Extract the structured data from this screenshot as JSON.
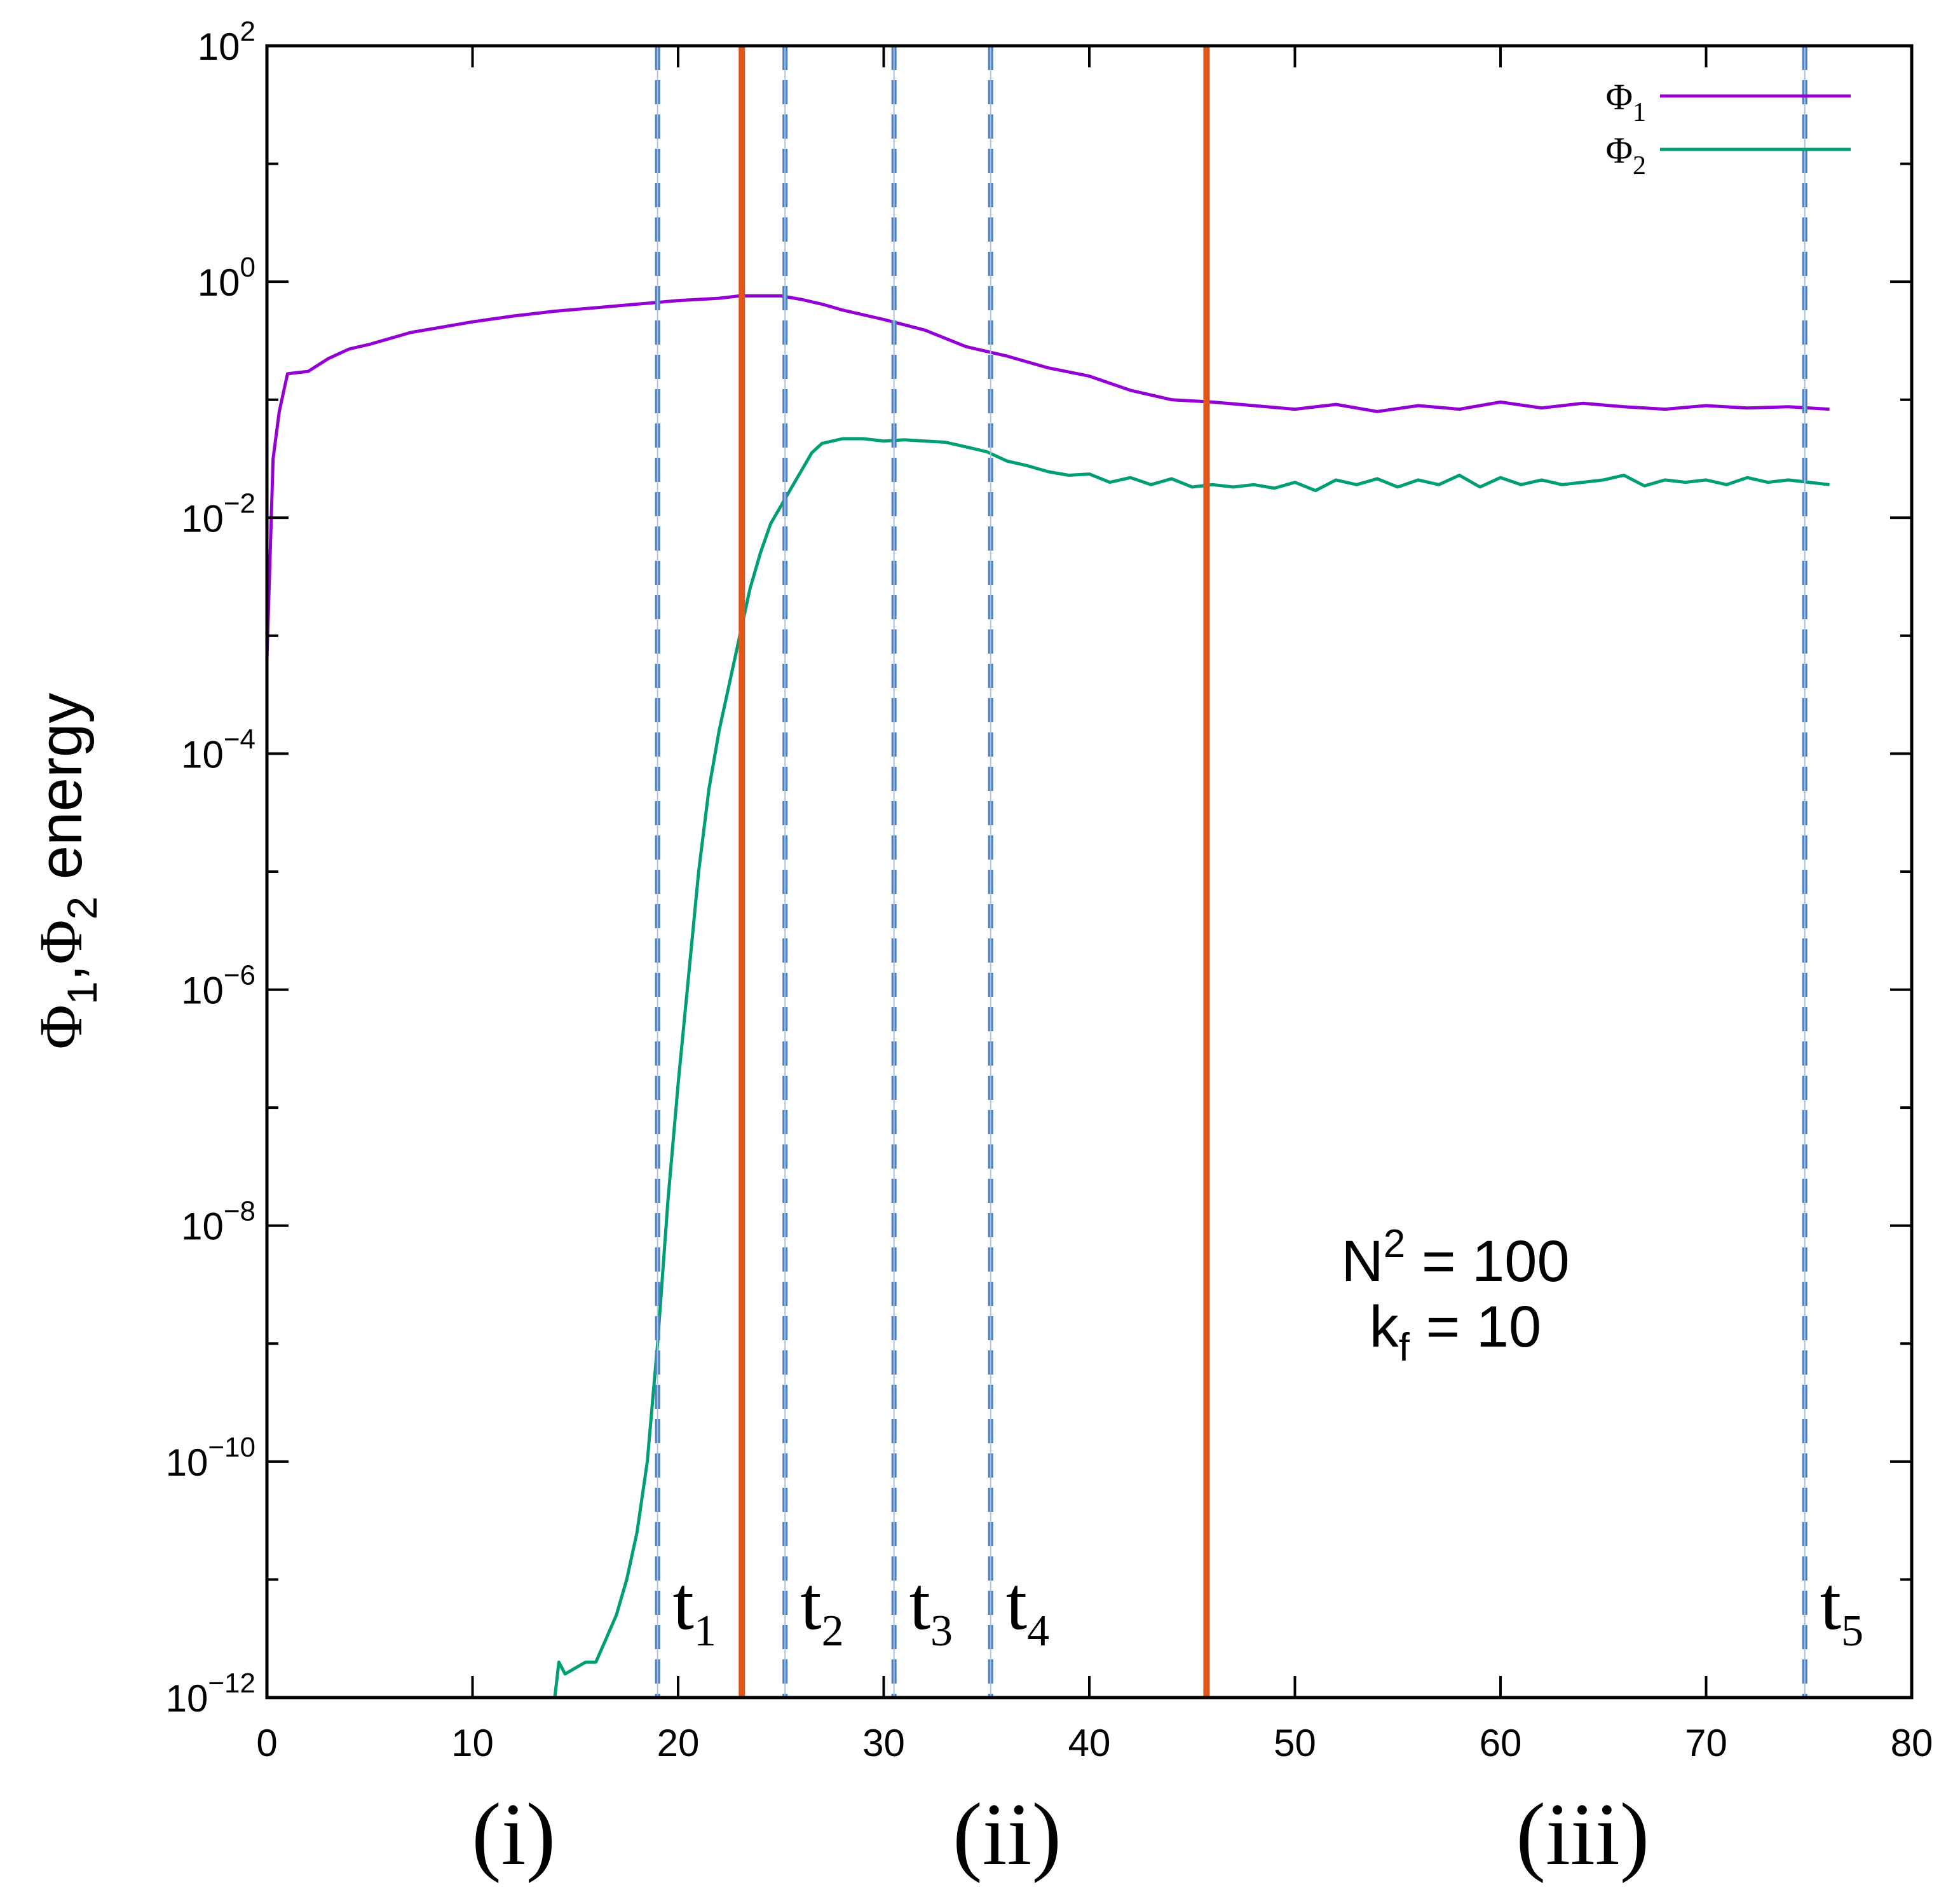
{
  "chart_data": {
    "type": "line",
    "title": "",
    "xlabel": "",
    "ylabel": {
      "base": "Φ",
      "sub1": "1",
      "comma": ",",
      "base2": "Φ",
      "sub2": "2",
      "rest": " energy"
    },
    "xlim": [
      0,
      80
    ],
    "ylim_log10": [
      -12,
      2
    ],
    "yscale": "log",
    "x_ticks": [
      "0",
      "10",
      "20",
      "30",
      "40",
      "50",
      "60",
      "70",
      "80"
    ],
    "x_tick_values": [
      0,
      10,
      20,
      30,
      40,
      50,
      60,
      70,
      80
    ],
    "y_ticks": [
      {
        "base": "10",
        "exp": "2",
        "value_log10": 2
      },
      {
        "base": "10",
        "exp": "0",
        "value_log10": 0
      },
      {
        "base": "10",
        "exp": "−2",
        "value_log10": -2
      },
      {
        "base": "10",
        "exp": "−4",
        "value_log10": -4
      },
      {
        "base": "10",
        "exp": "−6",
        "value_log10": -6
      },
      {
        "base": "10",
        "exp": "−8",
        "value_log10": -8
      },
      {
        "base": "10",
        "exp": "−10",
        "value_log10": -10
      },
      {
        "base": "10",
        "exp": "−12",
        "value_log10": -12
      }
    ],
    "legend": {
      "position": "top-right",
      "entries": [
        {
          "base": "Φ",
          "sub": "1",
          "color": "#9400d3"
        },
        {
          "base": "Φ",
          "sub": "2",
          "color": "#009e73"
        }
      ]
    },
    "series": [
      {
        "name": "Φ1",
        "color": "#9400d3",
        "points_log10": [
          [
            0.0,
            -3.2
          ],
          [
            0.3,
            -1.5
          ],
          [
            0.6,
            -1.1
          ],
          [
            1.0,
            -0.78
          ],
          [
            1.5,
            -0.77
          ],
          [
            2.0,
            -0.76
          ],
          [
            3.0,
            -0.65
          ],
          [
            4.0,
            -0.57
          ],
          [
            5.0,
            -0.53
          ],
          [
            6.0,
            -0.48
          ],
          [
            7.0,
            -0.43
          ],
          [
            8.0,
            -0.4
          ],
          [
            10.0,
            -0.34
          ],
          [
            12.0,
            -0.29
          ],
          [
            14.0,
            -0.25
          ],
          [
            16.0,
            -0.22
          ],
          [
            18.0,
            -0.19
          ],
          [
            20.0,
            -0.16
          ],
          [
            22.0,
            -0.14
          ],
          [
            23.0,
            -0.12
          ],
          [
            24.0,
            -0.12
          ],
          [
            25.0,
            -0.12
          ],
          [
            26.0,
            -0.15
          ],
          [
            27.0,
            -0.19
          ],
          [
            28.0,
            -0.24
          ],
          [
            30.0,
            -0.32
          ],
          [
            32.0,
            -0.41
          ],
          [
            34.0,
            -0.55
          ],
          [
            36.0,
            -0.63
          ],
          [
            38.0,
            -0.73
          ],
          [
            40.0,
            -0.8
          ],
          [
            42.0,
            -0.92
          ],
          [
            44.0,
            -1.0
          ],
          [
            46.0,
            -1.02
          ],
          [
            48.0,
            -1.05
          ],
          [
            50.0,
            -1.08
          ],
          [
            52.0,
            -1.04
          ],
          [
            54.0,
            -1.1
          ],
          [
            56.0,
            -1.05
          ],
          [
            58.0,
            -1.08
          ],
          [
            60.0,
            -1.02
          ],
          [
            62.0,
            -1.07
          ],
          [
            64.0,
            -1.03
          ],
          [
            66.0,
            -1.06
          ],
          [
            68.0,
            -1.08
          ],
          [
            70.0,
            -1.05
          ],
          [
            72.0,
            -1.07
          ],
          [
            74.0,
            -1.06
          ],
          [
            76.0,
            -1.08
          ]
        ]
      },
      {
        "name": "Φ2",
        "color": "#009e73",
        "points_log10": [
          [
            14.0,
            -12.0
          ],
          [
            14.2,
            -11.7
          ],
          [
            14.5,
            -11.8
          ],
          [
            15.0,
            -11.75
          ],
          [
            15.5,
            -11.7
          ],
          [
            16.0,
            -11.7
          ],
          [
            16.5,
            -11.5
          ],
          [
            17.0,
            -11.3
          ],
          [
            17.5,
            -11.0
          ],
          [
            18.0,
            -10.6
          ],
          [
            18.5,
            -10.0
          ],
          [
            19.0,
            -9.0
          ],
          [
            19.5,
            -7.8
          ],
          [
            20.0,
            -6.8
          ],
          [
            20.5,
            -5.9
          ],
          [
            21.0,
            -5.0
          ],
          [
            21.5,
            -4.3
          ],
          [
            22.0,
            -3.8
          ],
          [
            22.5,
            -3.4
          ],
          [
            23.0,
            -3.0
          ],
          [
            23.5,
            -2.6
          ],
          [
            24.0,
            -2.3
          ],
          [
            24.5,
            -2.05
          ],
          [
            25.0,
            -1.9
          ],
          [
            25.5,
            -1.75
          ],
          [
            26.0,
            -1.6
          ],
          [
            26.5,
            -1.45
          ],
          [
            27.0,
            -1.37
          ],
          [
            28.0,
            -1.33
          ],
          [
            29.0,
            -1.33
          ],
          [
            30.0,
            -1.35
          ],
          [
            31.0,
            -1.34
          ],
          [
            32.0,
            -1.35
          ],
          [
            33.0,
            -1.36
          ],
          [
            34.0,
            -1.4
          ],
          [
            35.0,
            -1.44
          ],
          [
            36.0,
            -1.52
          ],
          [
            37.0,
            -1.56
          ],
          [
            38.0,
            -1.61
          ],
          [
            39.0,
            -1.64
          ],
          [
            40.0,
            -1.63
          ],
          [
            41.0,
            -1.7
          ],
          [
            42.0,
            -1.66
          ],
          [
            43.0,
            -1.72
          ],
          [
            44.0,
            -1.67
          ],
          [
            45.0,
            -1.74
          ],
          [
            46.0,
            -1.72
          ],
          [
            47.0,
            -1.74
          ],
          [
            48.0,
            -1.72
          ],
          [
            49.0,
            -1.75
          ],
          [
            50.0,
            -1.7
          ],
          [
            51.0,
            -1.77
          ],
          [
            52.0,
            -1.68
          ],
          [
            53.0,
            -1.72
          ],
          [
            54.0,
            -1.67
          ],
          [
            55.0,
            -1.74
          ],
          [
            56.0,
            -1.68
          ],
          [
            57.0,
            -1.72
          ],
          [
            58.0,
            -1.64
          ],
          [
            59.0,
            -1.74
          ],
          [
            60.0,
            -1.66
          ],
          [
            61.0,
            -1.72
          ],
          [
            62.0,
            -1.68
          ],
          [
            63.0,
            -1.72
          ],
          [
            64.0,
            -1.7
          ],
          [
            65.0,
            -1.68
          ],
          [
            66.0,
            -1.64
          ],
          [
            67.0,
            -1.73
          ],
          [
            68.0,
            -1.68
          ],
          [
            69.0,
            -1.7
          ],
          [
            70.0,
            -1.68
          ],
          [
            71.0,
            -1.72
          ],
          [
            72.0,
            -1.66
          ],
          [
            73.0,
            -1.7
          ],
          [
            74.0,
            -1.68
          ],
          [
            75.0,
            -1.7
          ],
          [
            76.0,
            -1.72
          ]
        ]
      }
    ],
    "vertical_markers": {
      "dashed": [
        {
          "x": 19.0,
          "label": "t",
          "sub": "1"
        },
        {
          "x": 25.2,
          "label": "t",
          "sub": "2"
        },
        {
          "x": 30.5,
          "label": "t",
          "sub": "3"
        },
        {
          "x": 35.2,
          "label": "t",
          "sub": "4"
        },
        {
          "x": 74.8,
          "label": "t",
          "sub": "5"
        }
      ],
      "dashed_color": "#4a7fc1",
      "solid": [
        {
          "x": 23.1
        },
        {
          "x": 45.7
        }
      ],
      "solid_color": "#e1561a"
    },
    "annotations": {
      "n_line": {
        "base": "N",
        "sup": "2",
        "rest": " = 100"
      },
      "k_line": {
        "base": "k",
        "sub": "f",
        "rest": " = 10"
      }
    },
    "phase_labels": [
      {
        "text": "(i)",
        "x": 12
      },
      {
        "text": "(ii)",
        "x": 36
      },
      {
        "text": "(iii)",
        "x": 64
      }
    ]
  }
}
